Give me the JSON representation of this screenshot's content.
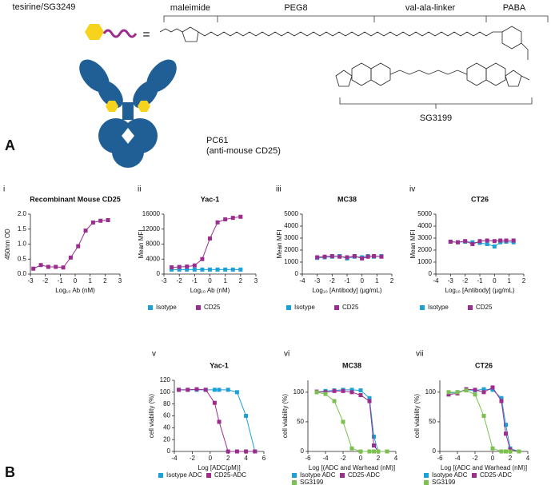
{
  "figure": {
    "panel_a_label": "A",
    "panel_b_label": "B",
    "tesirine": "tesirine/SG3249",
    "equals": "=",
    "segments": [
      "maleimide",
      "PEG8",
      "val-ala-linker",
      "PABA"
    ],
    "warhead": "SG3199",
    "antibody": "PC61",
    "antibody_target": "(anti-mouse CD25)"
  },
  "chart_data": [
    {
      "type": "scatter",
      "panel": "i",
      "title": "Recombinant Mouse CD25",
      "x_label": "Log₁₀ Ab (nM)",
      "y_label": "450nm OD",
      "x": [
        -2.8,
        -2.3,
        -1.8,
        -1.3,
        -0.8,
        -0.3,
        0.2,
        0.7,
        1.2,
        1.7,
        2.2
      ],
      "values": [
        0.18,
        0.3,
        0.24,
        0.24,
        0.22,
        0.55,
        0.93,
        1.45,
        1.72,
        1.78,
        1.8
      ],
      "color": "#9b2d8e",
      "xlim": [
        -3,
        3
      ],
      "xticks": [
        -3,
        -2,
        -1,
        0,
        1,
        2,
        3
      ],
      "ylim": [
        0,
        2
      ],
      "yticks": [
        {
          "value": 0,
          "label": "0.0"
        },
        {
          "value": 0.5,
          "label": "0.5"
        },
        {
          "value": 1,
          "label": "1.0"
        },
        {
          "value": 1.5,
          "label": "1.5"
        },
        {
          "value": 2,
          "label": "2.0"
        }
      ]
    },
    {
      "type": "scatter",
      "panel": "ii",
      "title": "Yac-1",
      "x_label": "Log₁₀ Ab (nM)",
      "y_label": "Mean MFI",
      "x": [
        -2.5,
        -2,
        -1.5,
        -1,
        -0.5,
        0,
        0.5,
        1,
        1.5,
        2
      ],
      "series": [
        {
          "name": "Isotype",
          "color": "#1ba1d8",
          "values": [
            1200,
            1200,
            1200,
            1200,
            1200,
            1200,
            1200,
            1200,
            1200,
            1200
          ]
        },
        {
          "name": "CD25",
          "color": "#9b2d8e",
          "values": [
            1800,
            1900,
            2000,
            2300,
            4000,
            9500,
            13800,
            14600,
            15000,
            15300
          ]
        }
      ],
      "xlim": [
        -3,
        3
      ],
      "xticks": [
        -3,
        -2,
        -1,
        0,
        1,
        2,
        3
      ],
      "ylim": [
        0,
        16000
      ],
      "yticks": [
        0,
        4000,
        8000,
        12000,
        16000
      ]
    },
    {
      "type": "scatter",
      "panel": "iii",
      "title": "MC38",
      "x_label": "Log₁₀ [Antibody] (µg/mL)",
      "y_label": "Mean MFI",
      "x": [
        -3,
        -2.5,
        -2,
        -1.5,
        -1,
        -0.5,
        0,
        0.4,
        0.8,
        1.3
      ],
      "series": [
        {
          "name": "Isotype",
          "color": "#1ba1d8",
          "values": [
            1350,
            1400,
            1450,
            1500,
            1300,
            1450,
            1400,
            1500,
            1450,
            1500
          ]
        },
        {
          "name": "CD25",
          "color": "#9b2d8e",
          "values": [
            1400,
            1450,
            1500,
            1450,
            1400,
            1500,
            1300,
            1450,
            1500,
            1450
          ]
        }
      ],
      "xlim": [
        -4,
        2
      ],
      "xticks": [
        -4,
        -3,
        -2,
        -1,
        0,
        1,
        2
      ],
      "ylim": [
        0,
        5000
      ],
      "yticks": [
        0,
        1000,
        2000,
        3000,
        4000,
        5000
      ]
    },
    {
      "type": "scatter",
      "panel": "iv",
      "title": "CT26",
      "x_label": "Log₁₀ [Antibody] (µg/mL)",
      "y_label": "Mean MFI",
      "x": [
        -3,
        -2.5,
        -2,
        -1.5,
        -1,
        -0.5,
        0,
        0.4,
        0.8,
        1.3
      ],
      "series": [
        {
          "name": "Isotype",
          "color": "#1ba1d8",
          "values": [
            2700,
            2650,
            2700,
            2650,
            2600,
            2500,
            2300,
            2650,
            2700,
            2650
          ]
        },
        {
          "name": "CD25",
          "color": "#9b2d8e",
          "values": [
            2700,
            2650,
            2750,
            2500,
            2750,
            2800,
            2750,
            2800,
            2800,
            2800
          ]
        }
      ],
      "xlim": [
        -4,
        2
      ],
      "xticks": [
        -4,
        -3,
        -2,
        -1,
        0,
        1,
        2
      ],
      "ylim": [
        0,
        5000
      ],
      "yticks": [
        0,
        1000,
        2000,
        3000,
        4000,
        5000
      ]
    },
    {
      "type": "line",
      "panel": "v",
      "title": "Yac-1",
      "x_label": "Log [ADC(pM)]",
      "y_label": "cell viability (%)",
      "x": [
        -3.5,
        -2.5,
        -1.5,
        -0.5,
        0.5,
        1,
        2,
        3,
        4,
        5
      ],
      "series": [
        {
          "name": "Isotype ADC",
          "color": "#1ba1d8",
          "values": [
            104,
            104,
            104,
            104,
            104,
            104,
            104,
            100,
            60,
            0
          ]
        },
        {
          "name": "CD25-ADC",
          "color": "#9b2d8e",
          "values": [
            104,
            104,
            105,
            104,
            82,
            50,
            0,
            0,
            0,
            0
          ]
        }
      ],
      "xlim": [
        -4,
        6
      ],
      "xticks": [
        -4,
        -2,
        0,
        2,
        4,
        6
      ],
      "ylim": [
        0,
        120
      ],
      "yticks": [
        0,
        20,
        40,
        60,
        80,
        100,
        120
      ]
    },
    {
      "type": "line",
      "panel": "vi",
      "title": "MC38",
      "x_label": "Log [(ADC and Warhead (nM)]",
      "y_label": "cell viability (%)",
      "x": [
        -5,
        -4,
        -3,
        -2,
        -1,
        0,
        1,
        1.5,
        2,
        3
      ],
      "series": [
        {
          "name": "Isotype ADC",
          "color": "#1ba1d8",
          "values": [
            100,
            102,
            103,
            104,
            104,
            103,
            90,
            25,
            0,
            0
          ]
        },
        {
          "name": "CD25-ADC",
          "color": "#9b2d8e",
          "values": [
            101,
            100,
            102,
            102,
            100,
            95,
            85,
            10,
            0,
            0
          ]
        },
        {
          "name": "SG3199",
          "color": "#7cc04f",
          "values": [
            100,
            97,
            85,
            50,
            5,
            0,
            0,
            0,
            0,
            0
          ]
        }
      ],
      "xlim": [
        -6,
        4
      ],
      "xticks": [
        -6,
        -4,
        -2,
        0,
        2,
        4
      ],
      "ylim": [
        0,
        120
      ],
      "yticks": [
        0,
        50,
        100
      ]
    },
    {
      "type": "line",
      "panel": "vii",
      "title": "CT26",
      "x_label": "Log [(ADC and Warhead (nM)]",
      "y_label": "cell viability (%)",
      "x": [
        -5,
        -4,
        -3,
        -2,
        -1,
        0,
        1,
        1.5,
        2,
        3
      ],
      "series": [
        {
          "name": "Isotype ADC",
          "color": "#1ba1d8",
          "values": [
            98,
            100,
            104,
            103,
            105,
            104,
            90,
            45,
            5,
            0
          ]
        },
        {
          "name": "CD25-ADC",
          "color": "#9b2d8e",
          "values": [
            96,
            98,
            105,
            104,
            100,
            108,
            85,
            30,
            3,
            0
          ]
        },
        {
          "name": "SG3199",
          "color": "#7cc04f",
          "values": [
            100,
            100,
            103,
            96,
            60,
            5,
            0,
            0,
            0,
            0
          ]
        }
      ],
      "xlim": [
        -6,
        4
      ],
      "xticks": [
        -6,
        -4,
        -2,
        0,
        2,
        4
      ],
      "ylim": [
        0,
        120
      ],
      "yticks": [
        0,
        50,
        100
      ]
    }
  ]
}
